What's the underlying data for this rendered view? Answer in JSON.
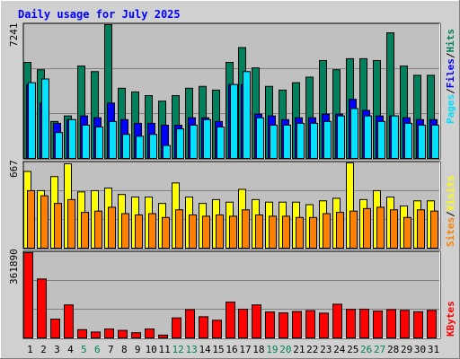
{
  "chart_data": [
    {
      "panel": "hits-files-pages",
      "type": "bar",
      "title": "Daily usage for July 2025",
      "categories": [
        "1",
        "2",
        "3",
        "4",
        "5",
        "6",
        "7",
        "8",
        "9",
        "10",
        "11",
        "12",
        "13",
        "14",
        "15",
        "16",
        "17",
        "18",
        "19",
        "20",
        "21",
        "22",
        "23",
        "24",
        "25",
        "26",
        "27",
        "28",
        "29",
        "30",
        "31"
      ],
      "weekend_days": [
        "5",
        "6",
        "12",
        "13",
        "19",
        "20",
        "26",
        "27"
      ],
      "max_label": "7241",
      "ylim": [
        0,
        7241
      ],
      "series": [
        {
          "name": "Hits",
          "color": "#00805c",
          "values": [
            5200,
            4800,
            2000,
            2300,
            5000,
            4700,
            7241,
            3800,
            3600,
            3400,
            3100,
            3400,
            3800,
            3900,
            3700,
            5200,
            6000,
            4900,
            3900,
            3700,
            4100,
            4400,
            5300,
            4800,
            5400,
            5400,
            5300,
            6800,
            5000,
            4500,
            4500
          ]
        },
        {
          "name": "Files",
          "color": "#0000ff",
          "values": [
            4000,
            3000,
            1900,
            2100,
            2300,
            2200,
            3000,
            2100,
            1900,
            1900,
            1800,
            1800,
            2200,
            2200,
            2000,
            4000,
            4000,
            2400,
            2300,
            2100,
            2200,
            2200,
            2400,
            2400,
            3200,
            2600,
            2300,
            2300,
            2200,
            2100,
            2100
          ]
        },
        {
          "name": "Pages",
          "color": "#00e0ff",
          "values": [
            4100,
            4300,
            1400,
            2100,
            1800,
            1700,
            2000,
            1300,
            1200,
            1300,
            700,
            1600,
            1800,
            2100,
            1700,
            4000,
            4700,
            2200,
            1800,
            1800,
            1900,
            1900,
            2000,
            2300,
            2700,
            2300,
            2000,
            2300,
            1900,
            1800,
            1800
          ]
        }
      ]
    },
    {
      "panel": "visits-sites",
      "type": "bar",
      "categories": [
        "1",
        "2",
        "3",
        "4",
        "5",
        "6",
        "7",
        "8",
        "9",
        "10",
        "11",
        "12",
        "13",
        "14",
        "15",
        "16",
        "17",
        "18",
        "19",
        "20",
        "21",
        "22",
        "23",
        "24",
        "25",
        "26",
        "27",
        "28",
        "29",
        "30",
        "31"
      ],
      "max_label": "667",
      "ylim": [
        0,
        667
      ],
      "series": [
        {
          "name": "Visits",
          "color": "#ffff00",
          "values": [
            600,
            450,
            560,
            660,
            440,
            450,
            470,
            420,
            400,
            400,
            350,
            510,
            400,
            350,
            380,
            360,
            460,
            380,
            360,
            360,
            360,
            340,
            370,
            390,
            667,
            380,
            450,
            400,
            330,
            370,
            370
          ]
        },
        {
          "name": "Sites",
          "color": "#ff8000",
          "values": [
            450,
            410,
            350,
            380,
            280,
            290,
            320,
            270,
            260,
            270,
            240,
            300,
            260,
            250,
            260,
            250,
            300,
            260,
            250,
            250,
            240,
            240,
            270,
            280,
            290,
            310,
            320,
            300,
            240,
            300,
            290
          ]
        }
      ]
    },
    {
      "panel": "kbytes",
      "type": "bar",
      "categories": [
        "1",
        "2",
        "3",
        "4",
        "5",
        "6",
        "7",
        "8",
        "9",
        "10",
        "11",
        "12",
        "13",
        "14",
        "15",
        "16",
        "17",
        "18",
        "19",
        "20",
        "21",
        "22",
        "23",
        "24",
        "25",
        "26",
        "27",
        "28",
        "29",
        "30",
        "31"
      ],
      "max_label": "361890",
      "ylim": [
        0,
        361890
      ],
      "series": [
        {
          "name": "KBytes",
          "color": "#ff0000",
          "values": [
            361890,
            250000,
            80000,
            140000,
            35000,
            25000,
            38000,
            32000,
            22000,
            38000,
            12000,
            85000,
            120000,
            90000,
            75000,
            152000,
            122000,
            140000,
            110000,
            106000,
            112000,
            116000,
            105000,
            143000,
            121000,
            122000,
            114000,
            120000,
            117000,
            111000,
            117000
          ]
        }
      ]
    }
  ],
  "right_labels": {
    "top": [
      {
        "text": "Pages",
        "color": "#00e0ff"
      },
      {
        "text": "/",
        "color": "#000000"
      },
      {
        "text": "Files",
        "color": "#0000ff"
      },
      {
        "text": "/",
        "color": "#000000"
      },
      {
        "text": "Hits",
        "color": "#00805c"
      }
    ],
    "middle": [
      {
        "text": "Sites",
        "color": "#ff8000"
      },
      {
        "text": "/",
        "color": "#000000"
      },
      {
        "text": "Visits",
        "color": "#ffff00"
      }
    ],
    "bottom": [
      {
        "text": "KBytes",
        "color": "#ff0000"
      }
    ]
  },
  "colors": {
    "title": "#0000ff",
    "weekday_label": "#000000",
    "weekend_label": "#00805c",
    "plot_bg": "#c0c0c0",
    "frame_bg": "#d0d0d0"
  }
}
